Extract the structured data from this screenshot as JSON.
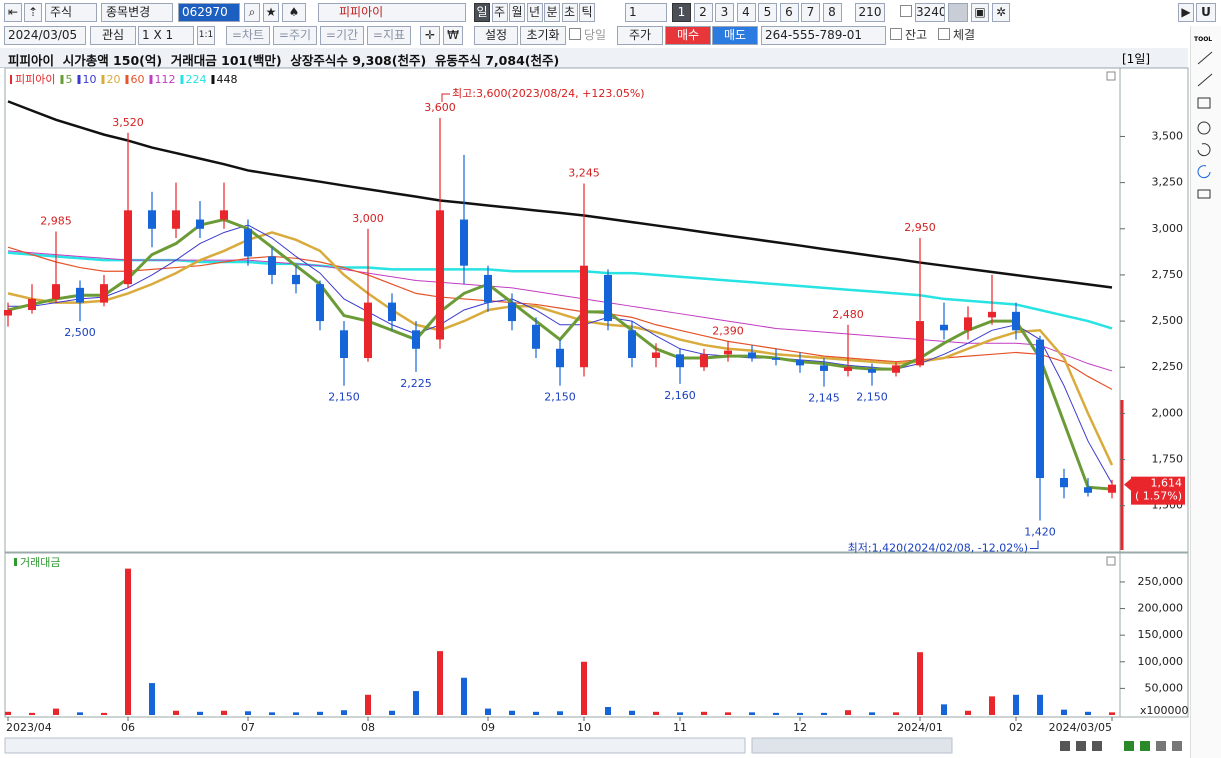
{
  "toolbar": {
    "stock_type": "주식",
    "change": "종목변경",
    "code": "062970",
    "name": "피피아이",
    "periods": [
      "일",
      "주",
      "월",
      "년",
      "분",
      "초",
      "틱"
    ],
    "period_count": "1",
    "pages": [
      "1",
      "2",
      "3",
      "4",
      "5",
      "6",
      "7",
      "8"
    ],
    "count": "210",
    "separator": "/",
    "total": "3240",
    "menu": "U"
  },
  "toolbar2": {
    "date": "2024/03/05",
    "watch": "관심",
    "layout": "1 X 1",
    "ratio": "1:1",
    "menus": [
      "=차트",
      "=주기",
      "=기간",
      "=지표"
    ],
    "settings": "설정",
    "reset": "초기화",
    "today": "당일",
    "price": "주가",
    "buy": "매수",
    "sell": "매도",
    "account": "264-555-789-01",
    "balance": "잔고",
    "executed": "체결"
  },
  "info": {
    "text": "피피아이  시가총액 150(억)  거래대금 101(백만)  상장주식수 9,308(천주)  유동주식 7,084(천주)",
    "period_badge": "[1일]"
  },
  "side_tool": "TOOL",
  "chart_data": [
    {
      "type": "candlestick",
      "categories": [
        "2023/04",
        null,
        null,
        null,
        null,
        "06",
        null,
        null,
        null,
        null,
        "07",
        null,
        null,
        null,
        null,
        "08",
        null,
        null,
        null,
        null,
        "09",
        null,
        null,
        null,
        "10",
        null,
        null,
        null,
        "11",
        null,
        null,
        null,
        null,
        "12",
        null,
        null,
        null,
        null,
        "2024/01",
        null,
        null,
        null,
        "02",
        null,
        null,
        null,
        "2024/03/05"
      ],
      "series": [
        {
          "name": "피피아이",
          "color_up": "#e8262b",
          "color_down": "#1565d8",
          "open": [
            2530,
            2560,
            2620,
            2680,
            2600,
            2700,
            3100,
            3000,
            3050,
            3050,
            3000,
            2850,
            2750,
            2700,
            2450,
            2300,
            2600,
            2450,
            2400,
            3050,
            2750,
            2600,
            2480,
            2350,
            2250,
            2750,
            2450,
            2300,
            2320,
            2250,
            2320,
            2330,
            2300,
            2290,
            2260,
            2230,
            2240,
            2220,
            2260,
            2480,
            2450,
            2520,
            2550,
            2400,
            1650,
            1600,
            1570
          ],
          "high": [
            2600,
            2700,
            2985,
            2720,
            2750,
            3520,
            3200,
            3250,
            3150,
            3250,
            3050,
            2900,
            2800,
            2720,
            2500,
            3000,
            2650,
            2500,
            3600,
            3400,
            2800,
            2650,
            2520,
            2400,
            3245,
            2780,
            2500,
            2380,
            2350,
            2350,
            2390,
            2370,
            2350,
            2330,
            2300,
            2480,
            2270,
            2280,
            2950,
            2600,
            2580,
            2750,
            2600,
            2420,
            1700,
            1650,
            1640
          ],
          "low": [
            2470,
            2540,
            2600,
            2500,
            2580,
            2680,
            2900,
            2950,
            2950,
            3000,
            2800,
            2700,
            2650,
            2450,
            2150,
            2280,
            2450,
            2225,
            2350,
            2700,
            2550,
            2450,
            2300,
            2150,
            2200,
            2450,
            2250,
            2250,
            2160,
            2230,
            2280,
            2280,
            2260,
            2220,
            2145,
            2200,
            2150,
            2200,
            2250,
            2400,
            2400,
            2480,
            2400,
            1420,
            1540,
            1550,
            1540
          ],
          "close": [
            2560,
            2620,
            2700,
            2600,
            2700,
            3100,
            3000,
            3100,
            3000,
            3100,
            2850,
            2750,
            2700,
            2500,
            2300,
            2600,
            2500,
            2350,
            3100,
            2800,
            2600,
            2500,
            2350,
            2250,
            2800,
            2500,
            2300,
            2330,
            2250,
            2320,
            2340,
            2300,
            2290,
            2260,
            2230,
            2250,
            2220,
            2260,
            2500,
            2450,
            2520,
            2550,
            2450,
            1650,
            1600,
            1570,
            1614
          ]
        },
        {
          "name": "5",
          "color": "#6b9b37",
          "values": [
            2560,
            2590,
            2620,
            2640,
            2640,
            2730,
            2860,
            2920,
            3020,
            3050,
            3000,
            2900,
            2800,
            2700,
            2530,
            2500,
            2450,
            2400,
            2550,
            2650,
            2700,
            2600,
            2500,
            2400,
            2550,
            2550,
            2450,
            2350,
            2300,
            2300,
            2310,
            2310,
            2300,
            2280,
            2270,
            2250,
            2240,
            2240,
            2300,
            2380,
            2450,
            2500,
            2500,
            2300,
            1950,
            1600,
            1590
          ]
        },
        {
          "name": "10",
          "color": "#3a3ad0",
          "values": [
            2580,
            2580,
            2600,
            2620,
            2630,
            2680,
            2750,
            2830,
            2920,
            2980,
            3020,
            2950,
            2850,
            2760,
            2620,
            2550,
            2480,
            2430,
            2480,
            2560,
            2600,
            2620,
            2560,
            2480,
            2480,
            2520,
            2500,
            2420,
            2350,
            2320,
            2310,
            2300,
            2300,
            2290,
            2280,
            2260,
            2250,
            2240,
            2270,
            2320,
            2380,
            2450,
            2480,
            2400,
            2150,
            1850,
            1620
          ]
        },
        {
          "name": "20",
          "color": "#d9ab3c",
          "values": [
            2650,
            2620,
            2600,
            2600,
            2610,
            2650,
            2700,
            2760,
            2830,
            2880,
            2940,
            2980,
            2940,
            2880,
            2750,
            2650,
            2560,
            2480,
            2450,
            2500,
            2560,
            2580,
            2580,
            2540,
            2500,
            2480,
            2470,
            2440,
            2400,
            2370,
            2350,
            2340,
            2320,
            2310,
            2300,
            2290,
            2280,
            2270,
            2280,
            2300,
            2350,
            2400,
            2440,
            2450,
            2300,
            2000,
            1720
          ]
        },
        {
          "name": "60",
          "color": "#e5542a",
          "values": [
            2900,
            2860,
            2820,
            2790,
            2770,
            2770,
            2780,
            2790,
            2800,
            2820,
            2840,
            2850,
            2840,
            2820,
            2790,
            2750,
            2700,
            2650,
            2630,
            2620,
            2610,
            2600,
            2590,
            2570,
            2550,
            2540,
            2520,
            2480,
            2450,
            2420,
            2390,
            2370,
            2350,
            2330,
            2310,
            2300,
            2290,
            2280,
            2290,
            2300,
            2310,
            2320,
            2330,
            2320,
            2280,
            2200,
            2130
          ]
        },
        {
          "name": "112",
          "color": "#c23bc2",
          "values": [
            2880,
            2870,
            2860,
            2850,
            2840,
            2830,
            2830,
            2830,
            2830,
            2830,
            2830,
            2820,
            2810,
            2800,
            2780,
            2760,
            2740,
            2720,
            2710,
            2700,
            2690,
            2680,
            2660,
            2640,
            2620,
            2600,
            2580,
            2560,
            2540,
            2520,
            2500,
            2480,
            2460,
            2450,
            2440,
            2430,
            2420,
            2410,
            2400,
            2390,
            2380,
            2380,
            2380,
            2370,
            2320,
            2270,
            2230
          ]
        },
        {
          "name": "224",
          "color": "#27e3e3",
          "values": [
            2870,
            2860,
            2850,
            2840,
            2830,
            2830,
            2830,
            2830,
            2820,
            2820,
            2820,
            2810,
            2810,
            2800,
            2790,
            2790,
            2780,
            2780,
            2780,
            2780,
            2780,
            2770,
            2770,
            2770,
            2770,
            2760,
            2760,
            2750,
            2740,
            2730,
            2720,
            2710,
            2700,
            2690,
            2680,
            2670,
            2660,
            2650,
            2640,
            2620,
            2610,
            2600,
            2590,
            2560,
            2530,
            2500,
            2460
          ]
        },
        {
          "name": "448",
          "color": "#111111",
          "values": [
            3690,
            3640,
            3590,
            3550,
            3510,
            3478,
            3440,
            3410,
            3380,
            3350,
            3316,
            3295,
            3275,
            3255,
            3234,
            3214,
            3194,
            3174,
            3153,
            3140,
            3126,
            3113,
            3099,
            3086,
            3072,
            3054,
            3036,
            3018,
            3000,
            2981,
            2963,
            2945,
            2927,
            2909,
            2890,
            2872,
            2854,
            2836,
            2817,
            2800,
            2783,
            2766,
            2749,
            2732,
            2716,
            2699,
            2682
          ]
        }
      ],
      "ylim": [
        1260,
        3860
      ],
      "yticks": [
        {
          "value": 1500,
          "label": "1,500"
        },
        {
          "value": 1750,
          "label": "1,750"
        },
        {
          "value": 2000,
          "label": "2,000"
        },
        {
          "value": 2250,
          "label": "2,250"
        },
        {
          "value": 2500,
          "label": "2,500"
        },
        {
          "value": 2750,
          "label": "2,750"
        },
        {
          "value": 3000,
          "label": "3,000"
        },
        {
          "value": 3250,
          "label": "3,250"
        },
        {
          "value": 3500,
          "label": "3,500"
        }
      ],
      "grid": false,
      "annotations": [
        {
          "value": 2985,
          "label": "2,985"
        },
        {
          "value": 2500,
          "label": "2,500"
        },
        {
          "value": 3520,
          "label": "3,520"
        },
        {
          "value": 2150,
          "label": "2,150"
        },
        {
          "value": 3000,
          "label": "3,000"
        },
        {
          "value": 2225,
          "label": "2,225"
        },
        {
          "value": 3600,
          "label": "3,600"
        },
        {
          "value": 2150,
          "label": "2,150"
        },
        {
          "value": 3245,
          "label": "3,245"
        },
        {
          "value": 2160,
          "label": "2,160"
        },
        {
          "value": 2390,
          "label": "2,390"
        },
        {
          "value": 2145,
          "label": "2,145"
        },
        {
          "value": 2480,
          "label": "2,480"
        },
        {
          "value": 2150,
          "label": "2,150"
        },
        {
          "value": 2950,
          "label": "2,950"
        },
        {
          "value": 1420,
          "label": "1,420"
        }
      ],
      "max_label": "최고:3,600(2023/08/24, +123.05%)",
      "min_label": "최저:1,420(2024/02/08, -12.02%)",
      "last_price": {
        "value": 1614,
        "label": "1,614"
      },
      "change_label": "( 1.57%)"
    },
    {
      "type": "bar",
      "title": "거래대금",
      "color": "#2f9a2f",
      "values": [
        6000,
        4000,
        12000,
        5000,
        4000,
        275000,
        60000,
        8000,
        6000,
        8000,
        7000,
        5000,
        5000,
        6000,
        9000,
        38000,
        8000,
        45000,
        120000,
        70000,
        12000,
        8000,
        6000,
        7000,
        100000,
        15000,
        8000,
        6000,
        5000,
        6000,
        5000,
        5000,
        4000,
        4000,
        4000,
        9000,
        5000,
        5000,
        118000,
        20000,
        8000,
        35000,
        38000,
        38000,
        10000,
        6000,
        5000
      ],
      "ylim": [
        0,
        295000
      ],
      "yticks": [
        {
          "value": 50000,
          "label": "50,000"
        },
        {
          "value": 100000,
          "label": "100,000"
        },
        {
          "value": 150000,
          "label": "150,000"
        },
        {
          "value": 200000,
          "label": "200,000"
        },
        {
          "value": 250000,
          "label": "250,000"
        }
      ],
      "unit_label": "x100000"
    }
  ]
}
